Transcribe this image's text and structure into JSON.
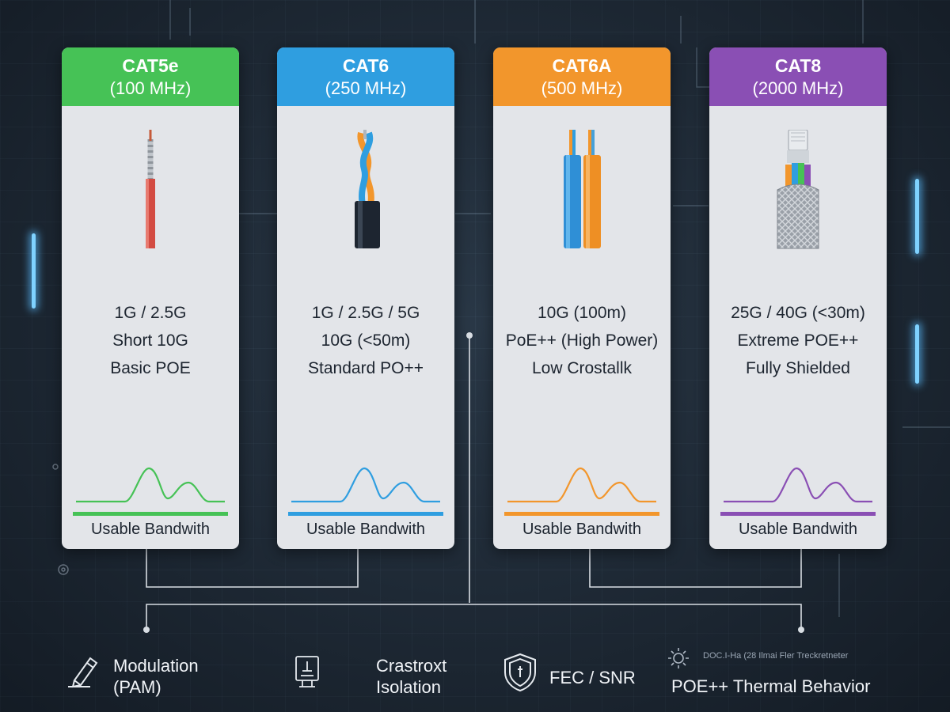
{
  "colors": {
    "cat5e": "#46c256",
    "cat6": "#2f9ee0",
    "cat6a": "#f2962c",
    "cat8": "#8a4fb4",
    "connector": "#d8dde3",
    "background": "#1f2a36"
  },
  "cards": [
    {
      "id": "cat5e",
      "title": "CAT5e",
      "subtitle": "(100 MHz)",
      "cable_icon": "single-red-wire-icon",
      "features": [
        "1G / 2.5G",
        "Short 10G",
        "Basic POE"
      ],
      "band_label": "Usable Bandwith"
    },
    {
      "id": "cat6",
      "title": "CAT6",
      "subtitle": "(250 MHz)",
      "cable_icon": "twisted-pair-cable-icon",
      "features": [
        "1G / 2.5G / 5G",
        "10G (<50m)",
        "Standard PO++"
      ],
      "band_label": "Usable Bandwith"
    },
    {
      "id": "cat6a",
      "title": "CAT6A",
      "subtitle": "(500 MHz)",
      "cable_icon": "dual-pair-cable-icon",
      "features": [
        "10G (100m)",
        "PoE++ (High Power)",
        "Low Crostallk"
      ],
      "band_label": "Usable Bandwith"
    },
    {
      "id": "cat8",
      "title": "CAT8",
      "subtitle": "(2000 MHz)",
      "cable_icon": "shielded-braided-cable-icon",
      "features": [
        "25G / 40G (<30m)",
        "Extreme POE++",
        "Fully Shielded"
      ],
      "band_label": "Usable Bandwith"
    }
  ],
  "bottom": {
    "modulation": {
      "line1": "Modulation",
      "line2": "(PAM)",
      "icon": "pen-writing-icon"
    },
    "isolation": {
      "line1": "Crastroxt",
      "line2": "Isolation",
      "icon": "document-stamp-icon"
    },
    "fec": {
      "label": "FEC / SNR",
      "icon": "shield-icon"
    },
    "thermal": {
      "note": "DOC.I-Ha (28 Ilmai Fler Treckretneter",
      "label": "POE++ Thermal Behavior",
      "icon": "gear-icon"
    }
  }
}
